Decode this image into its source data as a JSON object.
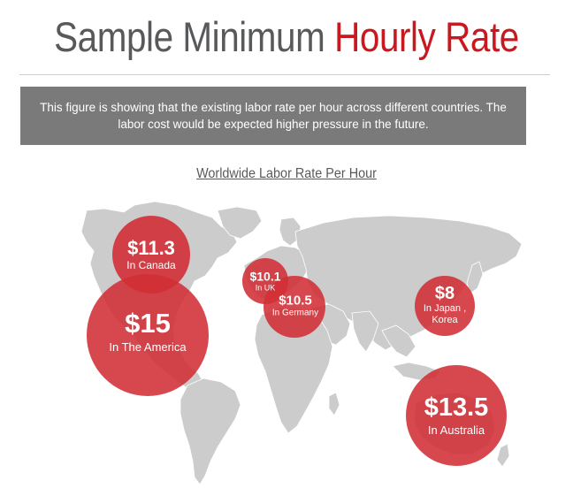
{
  "header": {
    "title_part1": "Sample Minimum",
    "title_part2": "Hourly Rate",
    "title_color_gray": "#58595b",
    "title_color_red": "#c8191f"
  },
  "banner": {
    "text": "This figure is showing that the existing labor rate per hour across different countries. The labor cost would be expected higher pressure in the future."
  },
  "map": {
    "subtitle": "Worldwide Labor Rate Per Hour",
    "land_color": "#cccccc",
    "bubble_color": "#d12f36"
  },
  "bubbles": [
    {
      "id": "canada",
      "amount": "$11.3",
      "location": "In Canada"
    },
    {
      "id": "america",
      "amount": "$15",
      "location": "In The America"
    },
    {
      "id": "uk",
      "amount": "$10.1",
      "location": "In UK"
    },
    {
      "id": "germany",
      "amount": "$10.5",
      "location": "In Germany"
    },
    {
      "id": "japan",
      "amount": "$8",
      "location_line1": "In Japan ,",
      "location_line2": "Korea"
    },
    {
      "id": "australia",
      "amount": "$13.5",
      "location": "In Australia"
    }
  ]
}
